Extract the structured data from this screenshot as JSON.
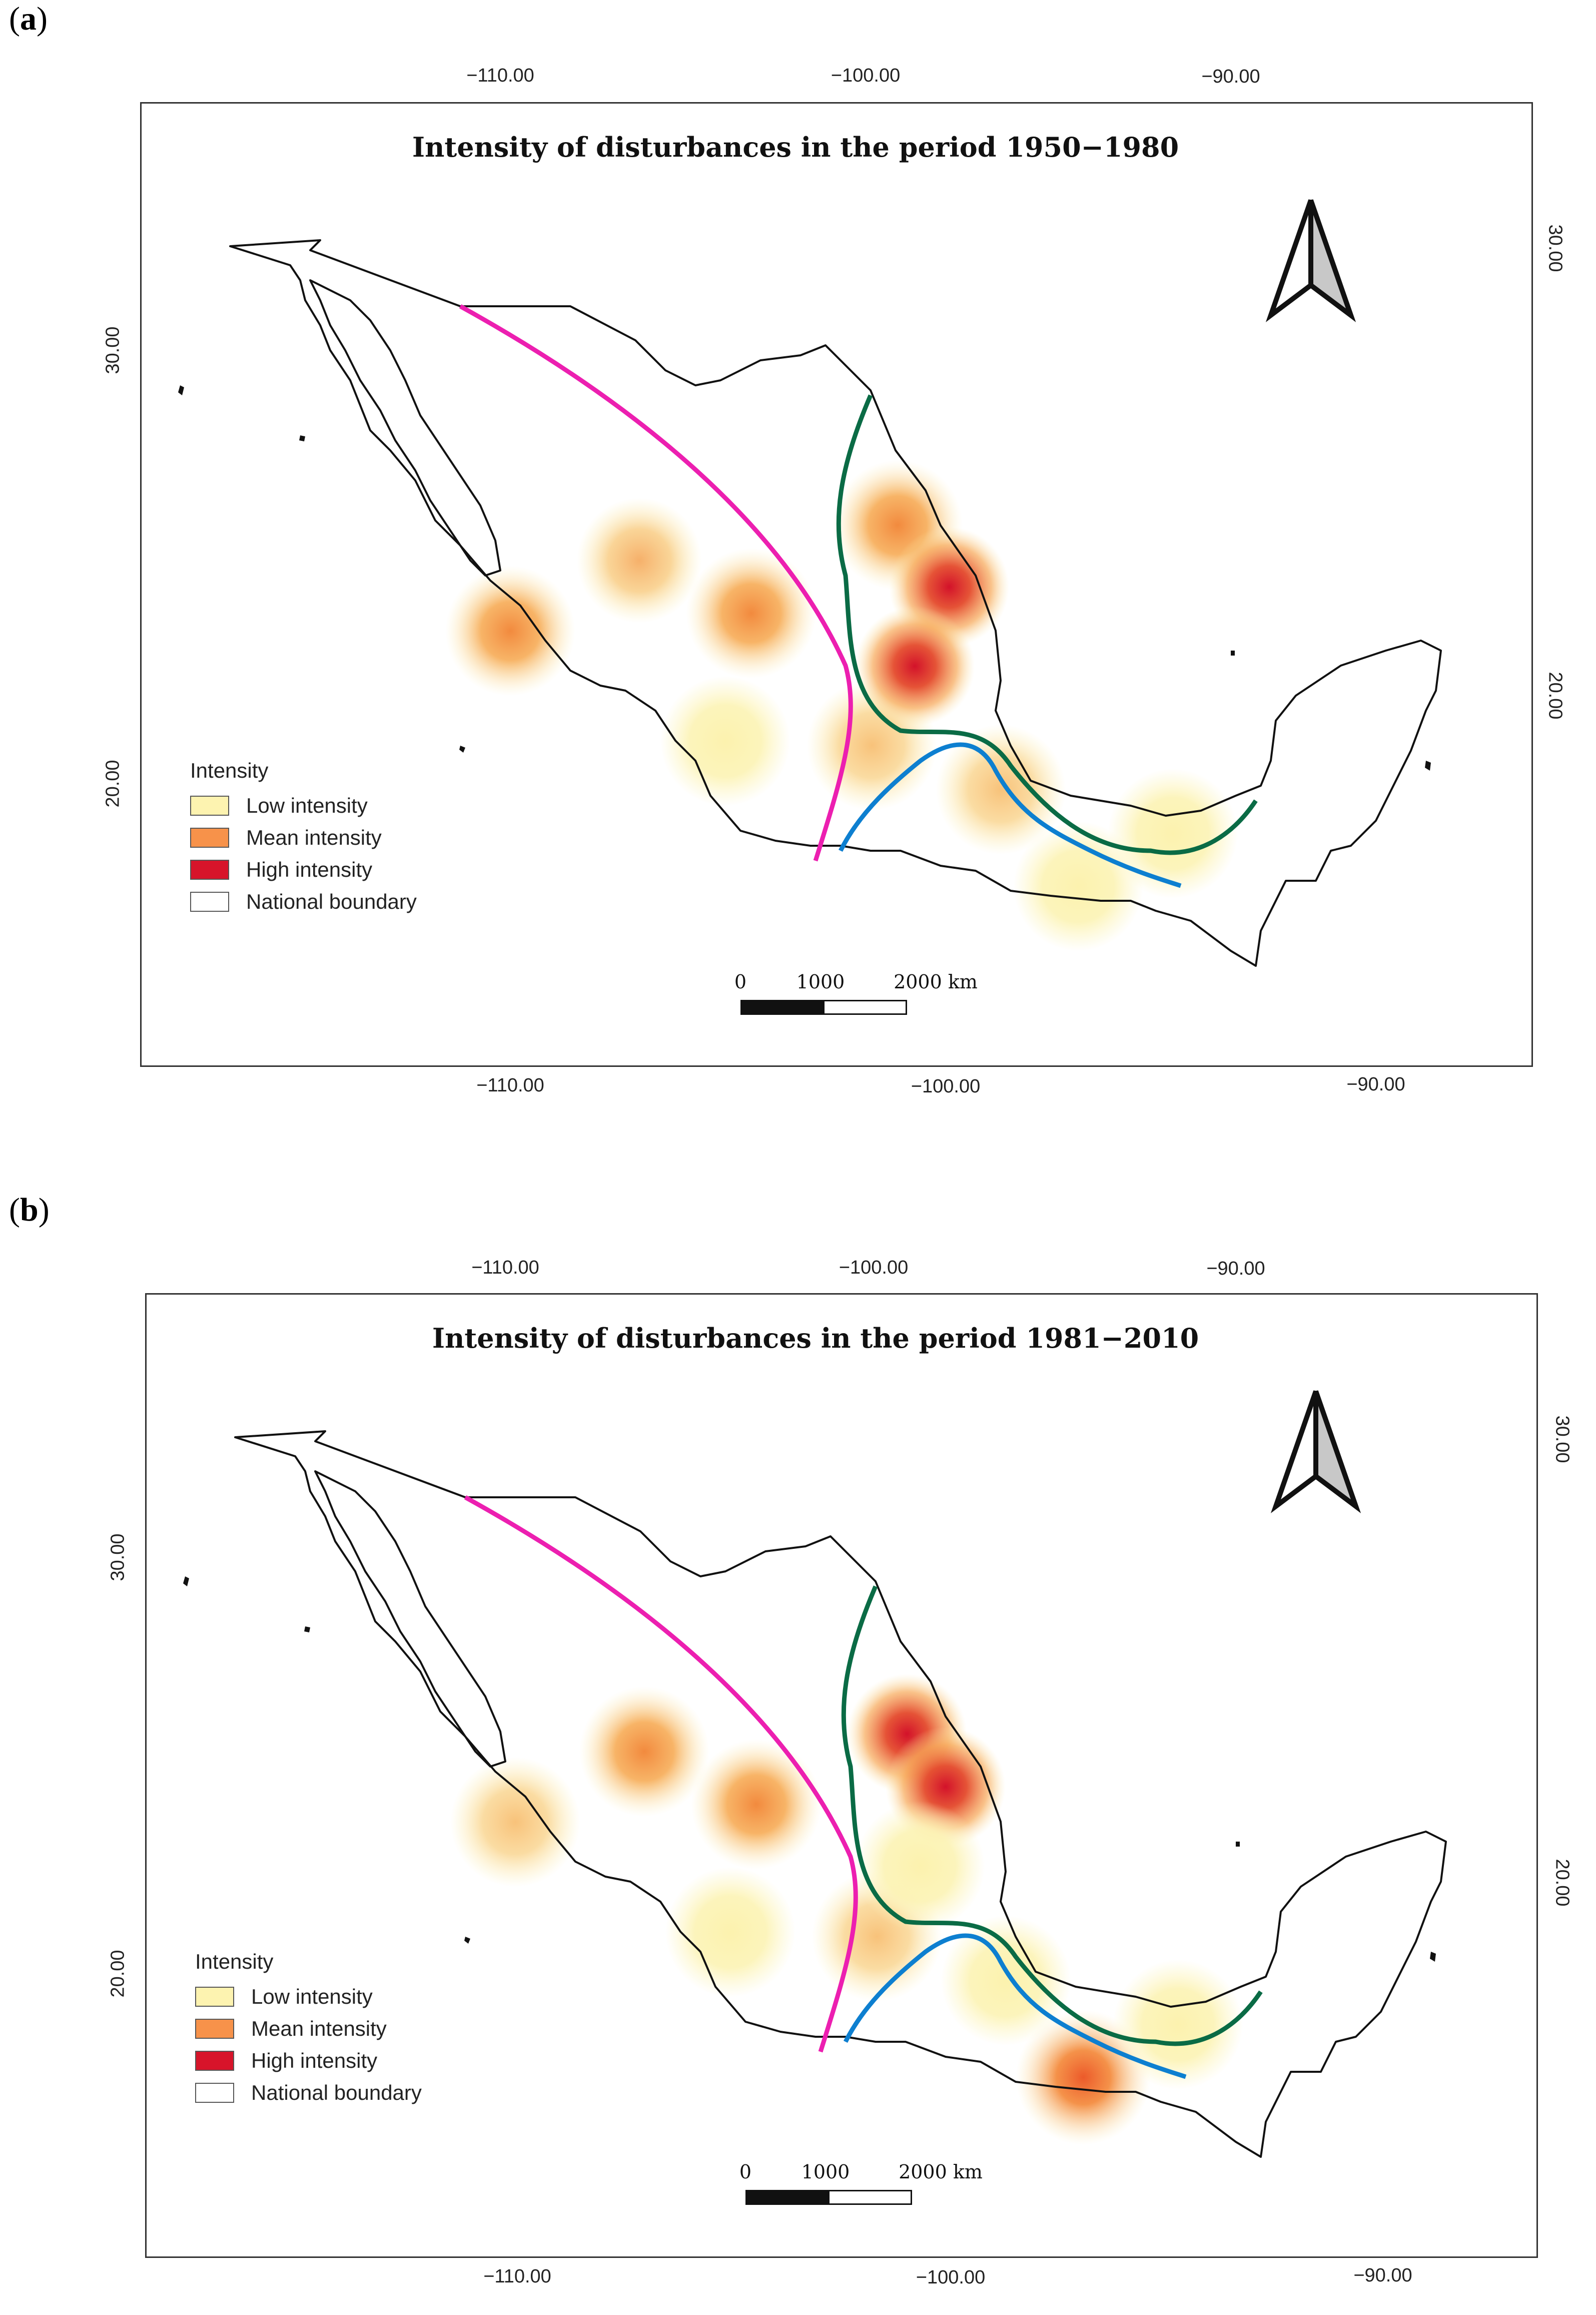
{
  "panels": [
    {
      "letter_open": "(",
      "letter": "a",
      "letter_close": ")",
      "title": "Intensity of disturbances in the period 1950−1980",
      "top_ticks": [
        "−110.00",
        "−100.00",
        "−90.00"
      ],
      "bottom_ticks": [
        "−110.00",
        "−100.00",
        "−90.00"
      ],
      "left_ticks": [
        "30.00",
        "20.00"
      ],
      "right_ticks": [
        "30.00",
        "20.00"
      ],
      "hotspots": [
        {
          "name": "hotspot-sinaloa-coast",
          "lon": -110.0,
          "lat": 23.4,
          "intensity": "mean"
        },
        {
          "name": "hotspot-durango-west",
          "lon": -107.0,
          "lat": 25.0,
          "intensity": "mean-low"
        },
        {
          "name": "hotspot-durango-east",
          "lon": -104.4,
          "lat": 23.8,
          "intensity": "mean"
        },
        {
          "name": "hotspot-jalisco",
          "lon": -105.0,
          "lat": 20.9,
          "intensity": "low"
        },
        {
          "name": "hotspot-west-central",
          "lon": -101.6,
          "lat": 20.8,
          "intensity": "low-mean"
        },
        {
          "name": "hotspot-coahuila-north",
          "lon": -101.0,
          "lat": 25.8,
          "intensity": "mean"
        },
        {
          "name": "hotspot-nuevo-leon",
          "lon": -99.8,
          "lat": 24.4,
          "intensity": "high"
        },
        {
          "name": "hotspot-san-luis",
          "lon": -100.6,
          "lat": 22.6,
          "intensity": "high"
        },
        {
          "name": "hotspot-puebla",
          "lon": -98.6,
          "lat": 19.8,
          "intensity": "low-mean"
        },
        {
          "name": "hotspot-oaxaca",
          "lon": -96.8,
          "lat": 17.6,
          "intensity": "low"
        },
        {
          "name": "hotspot-tabasco",
          "lon": -94.6,
          "lat": 18.8,
          "intensity": "low"
        }
      ],
      "legend": {
        "title": "Intensity",
        "items": [
          {
            "label": "Low intensity",
            "color": "#fdf3b0"
          },
          {
            "label": "Mean intensity",
            "color": "#f7924a"
          },
          {
            "label": "High intensity",
            "color": "#d7142a"
          },
          {
            "label": "National boundary",
            "color": "#ffffff"
          }
        ]
      },
      "scale": {
        "labels": [
          "0",
          "1000",
          "2000 km"
        ]
      }
    },
    {
      "letter_open": "(",
      "letter": "b",
      "letter_close": ")",
      "title": "Intensity of disturbances in the period 1981−2010",
      "top_ticks": [
        "−110.00",
        "−100.00",
        "−90.00"
      ],
      "bottom_ticks": [
        "−110.00",
        "−100.00",
        "−90.00"
      ],
      "left_ticks": [
        "30.00",
        "20.00"
      ],
      "right_ticks": [
        "30.00",
        "20.00"
      ],
      "hotspots": [
        {
          "name": "hotspot-sinaloa-coast",
          "lon": -110.0,
          "lat": 23.4,
          "intensity": "low-mean"
        },
        {
          "name": "hotspot-durango-west",
          "lon": -107.0,
          "lat": 25.0,
          "intensity": "mean"
        },
        {
          "name": "hotspot-durango-east",
          "lon": -104.4,
          "lat": 23.8,
          "intensity": "mean"
        },
        {
          "name": "hotspot-jalisco",
          "lon": -105.0,
          "lat": 20.9,
          "intensity": "low"
        },
        {
          "name": "hotspot-west-central",
          "lon": -101.6,
          "lat": 20.8,
          "intensity": "low-mean"
        },
        {
          "name": "hotspot-coahuila-north",
          "lon": -100.9,
          "lat": 25.4,
          "intensity": "high"
        },
        {
          "name": "hotspot-nuevo-leon",
          "lon": -100.0,
          "lat": 24.2,
          "intensity": "high"
        },
        {
          "name": "hotspot-san-luis",
          "lon": -100.6,
          "lat": 22.4,
          "intensity": "low"
        },
        {
          "name": "hotspot-puebla",
          "lon": -98.6,
          "lat": 19.8,
          "intensity": "low"
        },
        {
          "name": "hotspot-oaxaca",
          "lon": -96.8,
          "lat": 17.6,
          "intensity": "mean-high"
        },
        {
          "name": "hotspot-tabasco",
          "lon": -94.6,
          "lat": 18.8,
          "intensity": "low"
        }
      ],
      "legend": {
        "title": "Intensity",
        "items": [
          {
            "label": "Low intensity",
            "color": "#fdf3b0"
          },
          {
            "label": "Mean intensity",
            "color": "#f7924a"
          },
          {
            "label": "High intensity",
            "color": "#d7142a"
          },
          {
            "label": "National boundary",
            "color": "#ffffff"
          }
        ]
      },
      "scale": {
        "labels": [
          "0",
          "1000",
          "2000 km"
        ]
      }
    }
  ],
  "lines": [
    {
      "name": "magenta-curve",
      "color": "#ec1fb0"
    },
    {
      "name": "green-curve",
      "color": "#0a6b45"
    },
    {
      "name": "blue-curve",
      "color": "#0d7fd0"
    }
  ]
}
